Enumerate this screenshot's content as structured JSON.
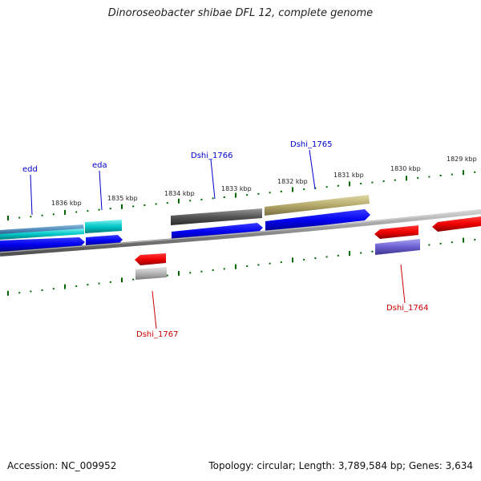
{
  "title": "Dinoroseobacter shibae DFL 12, complete genome",
  "footer": {
    "accession": "Accession: NC_009952",
    "stats": "Topology: circular; Length: 3,789,584 bp; Genes: 3,634"
  },
  "scale_labels": [
    "1836 kbp",
    "1835 kbp",
    "1834 kbp",
    "1833 kbp",
    "1832 kbp",
    "1831 kbp",
    "1830 kbp",
    "1829 kbp"
  ],
  "genes_forward": [
    {
      "name": "edd",
      "color": "#0000cc"
    },
    {
      "name": "eda",
      "color": "#0000cc"
    },
    {
      "name": "Dshi_1766",
      "color": "#0000cc"
    },
    {
      "name": "Dshi_1765",
      "color": "#0000cc"
    }
  ],
  "genes_reverse": [
    {
      "name": "Dshi_1767",
      "color": "#cc0000"
    },
    {
      "name": "Dshi_1764",
      "color": "#cc0000"
    }
  ],
  "colors": {
    "forward_cds": "#0000ee",
    "reverse_cds": "#ee0000",
    "backbone": "#888888",
    "tick": "#006600",
    "cog_cyan": "#00c8c8",
    "cog_dark_gray": "#555555",
    "cog_khaki": "#b5a96b",
    "cog_light_gray": "#b4b4b4",
    "cog_purple": "#6a5fd0"
  }
}
